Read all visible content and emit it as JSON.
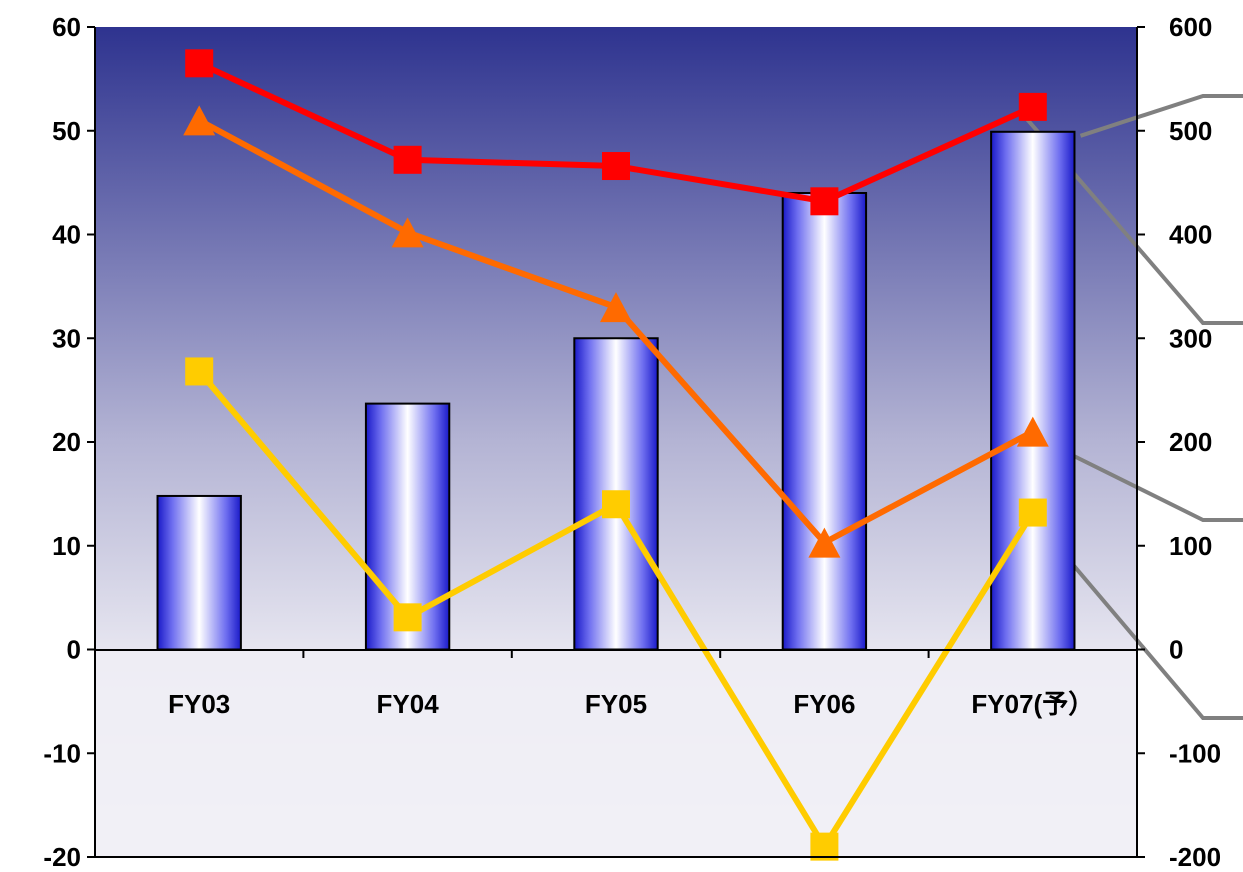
{
  "chart_data": {
    "type": "bar",
    "categories": [
      "FY03",
      "FY04",
      "FY05",
      "FY06",
      "FY07(予）"
    ],
    "y_left": {
      "ylim": [
        -20,
        60
      ],
      "ticks": [
        60,
        50,
        40,
        30,
        20,
        10,
        0,
        -10,
        -20
      ]
    },
    "y_right": {
      "ylim": [
        -200,
        600
      ],
      "ticks": [
        600,
        500,
        400,
        300,
        200,
        100,
        0,
        -100,
        -200
      ]
    },
    "bar_series": {
      "axis": "left",
      "values": [
        14.8,
        23.7,
        30.0,
        44.0,
        49.9
      ],
      "color": "#2a2ad0"
    },
    "line_series": [
      {
        "axis": "right",
        "marker": "square",
        "color": "#ff0000",
        "values": [
          565,
          472,
          466,
          432,
          523
        ]
      },
      {
        "axis": "right",
        "marker": "triangle",
        "color": "#ff6a00",
        "values": [
          510,
          402,
          330,
          103,
          210
        ]
      },
      {
        "axis": "right",
        "marker": "square",
        "color": "#ffcc00",
        "values": [
          268,
          31,
          140,
          -190,
          132
        ]
      }
    ],
    "legend": "none",
    "grid": false,
    "colors": {
      "plot_top": "#2e338f",
      "plot_mid": "#d9d9ec",
      "plot_bottom": "#ffffff",
      "leader": "#808080"
    }
  }
}
